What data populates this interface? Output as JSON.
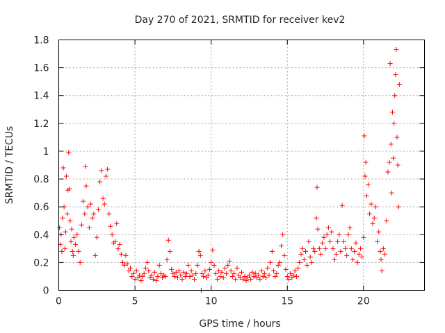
{
  "chart_data": {
    "type": "scatter",
    "title": "Day 270 of 2021, SRMTID for receiver kev2",
    "xlabel": "GPS time / hours",
    "ylabel": "SRMTID / TECUs",
    "xlim": [
      0,
      24
    ],
    "ylim": [
      0,
      1.8
    ],
    "xticks": [
      0,
      5,
      10,
      15,
      20
    ],
    "xtick_labels": [
      "0",
      "5",
      "10",
      "15",
      "20"
    ],
    "yticks": [
      0,
      0.2,
      0.4,
      0.6,
      0.8,
      1.0,
      1.2,
      1.4,
      1.6,
      1.8
    ],
    "ytick_labels": [
      "0",
      "0.2",
      "0.4",
      "0.6",
      "0.8",
      "1",
      "1.2",
      "1.4",
      "1.6",
      "1.8"
    ],
    "grid": true,
    "marker": "+",
    "color": "#ff0000",
    "series": [
      {
        "name": "SRMTID",
        "points": [
          [
            0.05,
            0.45
          ],
          [
            0.1,
            0.33
          ],
          [
            0.15,
            0.4
          ],
          [
            0.2,
            0.28
          ],
          [
            0.25,
            0.52
          ],
          [
            0.3,
            0.88
          ],
          [
            0.35,
            0.6
          ],
          [
            0.4,
            0.3
          ],
          [
            0.45,
            0.42
          ],
          [
            0.5,
            0.82
          ],
          [
            0.55,
            0.55
          ],
          [
            0.6,
            0.72
          ],
          [
            0.65,
            0.99
          ],
          [
            0.7,
            0.73
          ],
          [
            0.75,
            0.5
          ],
          [
            0.8,
            0.35
          ],
          [
            0.85,
            0.44
          ],
          [
            0.9,
            0.28
          ],
          [
            0.95,
            0.25
          ],
          [
            1.0,
            0.38
          ],
          [
            1.1,
            0.33
          ],
          [
            1.2,
            0.4
          ],
          [
            1.3,
            0.28
          ],
          [
            1.4,
            0.2
          ],
          [
            1.5,
            0.47
          ],
          [
            1.6,
            0.64
          ],
          [
            1.7,
            0.55
          ],
          [
            1.75,
            0.89
          ],
          [
            1.8,
            0.75
          ],
          [
            1.9,
            0.6
          ],
          [
            2.0,
            0.45
          ],
          [
            2.1,
            0.62
          ],
          [
            2.2,
            0.52
          ],
          [
            2.3,
            0.55
          ],
          [
            2.4,
            0.25
          ],
          [
            2.5,
            0.38
          ],
          [
            2.6,
            0.58
          ],
          [
            2.7,
            0.78
          ],
          [
            2.8,
            0.86
          ],
          [
            2.9,
            0.66
          ],
          [
            3.0,
            0.62
          ],
          [
            3.1,
            0.82
          ],
          [
            3.2,
            0.87
          ],
          [
            3.3,
            0.55
          ],
          [
            3.4,
            0.46
          ],
          [
            3.5,
            0.4
          ],
          [
            3.6,
            0.34
          ],
          [
            3.7,
            0.35
          ],
          [
            3.8,
            0.48
          ],
          [
            3.9,
            0.3
          ],
          [
            4.0,
            0.33
          ],
          [
            4.1,
            0.26
          ],
          [
            4.2,
            0.2
          ],
          [
            4.3,
            0.18
          ],
          [
            4.4,
            0.25
          ],
          [
            4.5,
            0.19
          ],
          [
            4.6,
            0.14
          ],
          [
            4.7,
            0.16
          ],
          [
            4.8,
            0.1
          ],
          [
            4.9,
            0.12
          ],
          [
            5.0,
            0.08
          ],
          [
            5.1,
            0.14
          ],
          [
            5.2,
            0.09
          ],
          [
            5.3,
            0.11
          ],
          [
            5.4,
            0.07
          ],
          [
            5.5,
            0.1
          ],
          [
            5.6,
            0.12
          ],
          [
            5.7,
            0.16
          ],
          [
            5.8,
            0.2
          ],
          [
            5.9,
            0.14
          ],
          [
            6.0,
            0.09
          ],
          [
            6.1,
            0.11
          ],
          [
            6.2,
            0.08
          ],
          [
            6.3,
            0.13
          ],
          [
            6.4,
            0.07
          ],
          [
            6.5,
            0.1
          ],
          [
            6.6,
            0.18
          ],
          [
            6.7,
            0.12
          ],
          [
            6.8,
            0.09
          ],
          [
            6.9,
            0.11
          ],
          [
            7.0,
            0.1
          ],
          [
            7.1,
            0.22
          ],
          [
            7.2,
            0.36
          ],
          [
            7.3,
            0.28
          ],
          [
            7.4,
            0.15
          ],
          [
            7.5,
            0.12
          ],
          [
            7.6,
            0.1
          ],
          [
            7.7,
            0.13
          ],
          [
            7.8,
            0.09
          ],
          [
            7.9,
            0.14
          ],
          [
            8.0,
            0.11
          ],
          [
            8.1,
            0.08
          ],
          [
            8.2,
            0.13
          ],
          [
            8.3,
            0.1
          ],
          [
            8.4,
            0.12
          ],
          [
            8.5,
            0.18
          ],
          [
            8.6,
            0.1
          ],
          [
            8.7,
            0.14
          ],
          [
            8.8,
            0.11
          ],
          [
            8.9,
            0.08
          ],
          [
            9.0,
            0.12
          ],
          [
            9.1,
            0.18
          ],
          [
            9.2,
            0.28
          ],
          [
            9.3,
            0.25
          ],
          [
            9.35,
            0.0
          ],
          [
            9.4,
            0.12
          ],
          [
            9.5,
            0.1
          ],
          [
            9.6,
            0.14
          ],
          [
            9.7,
            0.09
          ],
          [
            9.8,
            0.11
          ],
          [
            9.9,
            0.15
          ],
          [
            10.0,
            0.2
          ],
          [
            10.1,
            0.29
          ],
          [
            10.2,
            0.18
          ],
          [
            10.3,
            0.12
          ],
          [
            10.4,
            0.08
          ],
          [
            10.5,
            0.14
          ],
          [
            10.6,
            0.1
          ],
          [
            10.7,
            0.13
          ],
          [
            10.8,
            0.09
          ],
          [
            10.9,
            0.16
          ],
          [
            11.0,
            0.12
          ],
          [
            11.1,
            0.18
          ],
          [
            11.2,
            0.21
          ],
          [
            11.3,
            0.14
          ],
          [
            11.4,
            0.1
          ],
          [
            11.5,
            0.12
          ],
          [
            11.6,
            0.08
          ],
          [
            11.7,
            0.16
          ],
          [
            11.8,
            0.11
          ],
          [
            11.9,
            0.09
          ],
          [
            12.0,
            0.13
          ],
          [
            12.1,
            0.08
          ],
          [
            12.2,
            0.1
          ],
          [
            12.3,
            0.07
          ],
          [
            12.4,
            0.09
          ],
          [
            12.5,
            0.11
          ],
          [
            12.6,
            0.08
          ],
          [
            12.7,
            0.13
          ],
          [
            12.8,
            0.1
          ],
          [
            12.9,
            0.12
          ],
          [
            13.0,
            0.09
          ],
          [
            13.1,
            0.11
          ],
          [
            13.2,
            0.08
          ],
          [
            13.3,
            0.14
          ],
          [
            13.4,
            0.1
          ],
          [
            13.5,
            0.12
          ],
          [
            13.6,
            0.09
          ],
          [
            13.7,
            0.16
          ],
          [
            13.8,
            0.11
          ],
          [
            13.9,
            0.2
          ],
          [
            14.0,
            0.28
          ],
          [
            14.1,
            0.14
          ],
          [
            14.2,
            0.1
          ],
          [
            14.3,
            0.12
          ],
          [
            14.4,
            0.18
          ],
          [
            14.5,
            0.2
          ],
          [
            14.6,
            0.32
          ],
          [
            14.7,
            0.4
          ],
          [
            14.8,
            0.25
          ],
          [
            14.9,
            0.15
          ],
          [
            15.0,
            0.1
          ],
          [
            15.1,
            0.08
          ],
          [
            15.2,
            0.12
          ],
          [
            15.3,
            0.09
          ],
          [
            15.4,
            0.11
          ],
          [
            15.5,
            0.14
          ],
          [
            15.6,
            0.1
          ],
          [
            15.7,
            0.16
          ],
          [
            15.8,
            0.2
          ],
          [
            15.9,
            0.26
          ],
          [
            16.0,
            0.3
          ],
          [
            16.1,
            0.22
          ],
          [
            16.2,
            0.28
          ],
          [
            16.3,
            0.18
          ],
          [
            16.4,
            0.35
          ],
          [
            16.5,
            0.24
          ],
          [
            16.6,
            0.2
          ],
          [
            16.7,
            0.3
          ],
          [
            16.8,
            0.28
          ],
          [
            16.9,
            0.52
          ],
          [
            16.95,
            0.74
          ],
          [
            17.0,
            0.44
          ],
          [
            17.1,
            0.3
          ],
          [
            17.2,
            0.26
          ],
          [
            17.3,
            0.34
          ],
          [
            17.4,
            0.38
          ],
          [
            17.5,
            0.3
          ],
          [
            17.6,
            0.4
          ],
          [
            17.7,
            0.45
          ],
          [
            17.8,
            0.35
          ],
          [
            17.9,
            0.42
          ],
          [
            18.0,
            0.3
          ],
          [
            18.1,
            0.22
          ],
          [
            18.2,
            0.26
          ],
          [
            18.3,
            0.35
          ],
          [
            18.4,
            0.4
          ],
          [
            18.5,
            0.28
          ],
          [
            18.6,
            0.61
          ],
          [
            18.7,
            0.35
          ],
          [
            18.8,
            0.3
          ],
          [
            18.9,
            0.25
          ],
          [
            19.0,
            0.4
          ],
          [
            19.1,
            0.45
          ],
          [
            19.2,
            0.3
          ],
          [
            19.3,
            0.22
          ],
          [
            19.4,
            0.28
          ],
          [
            19.5,
            0.34
          ],
          [
            19.6,
            0.2
          ],
          [
            19.7,
            0.26
          ],
          [
            19.8,
            0.3
          ],
          [
            19.9,
            0.24
          ],
          [
            20.0,
            0.38
          ],
          [
            20.05,
            1.11
          ],
          [
            20.1,
            0.82
          ],
          [
            20.15,
            0.92
          ],
          [
            20.2,
            0.68
          ],
          [
            20.3,
            0.76
          ],
          [
            20.4,
            0.55
          ],
          [
            20.5,
            0.62
          ],
          [
            20.6,
            0.48
          ],
          [
            20.7,
            0.52
          ],
          [
            20.8,
            0.6
          ],
          [
            20.9,
            0.35
          ],
          [
            21.0,
            0.42
          ],
          [
            21.1,
            0.28
          ],
          [
            21.15,
            0.22
          ],
          [
            21.2,
            0.14
          ],
          [
            21.3,
            0.3
          ],
          [
            21.4,
            0.26
          ],
          [
            21.5,
            0.5
          ],
          [
            21.6,
            0.85
          ],
          [
            21.7,
            0.92
          ],
          [
            21.75,
            1.63
          ],
          [
            21.8,
            1.05
          ],
          [
            21.85,
            0.7
          ],
          [
            21.9,
            1.28
          ],
          [
            21.95,
            0.95
          ],
          [
            22.0,
            1.2
          ],
          [
            22.05,
            1.4
          ],
          [
            22.1,
            1.55
          ],
          [
            22.15,
            1.73
          ],
          [
            22.2,
            1.1
          ],
          [
            22.25,
            0.9
          ],
          [
            22.3,
            0.6
          ],
          [
            22.35,
            1.48
          ]
        ]
      }
    ]
  }
}
